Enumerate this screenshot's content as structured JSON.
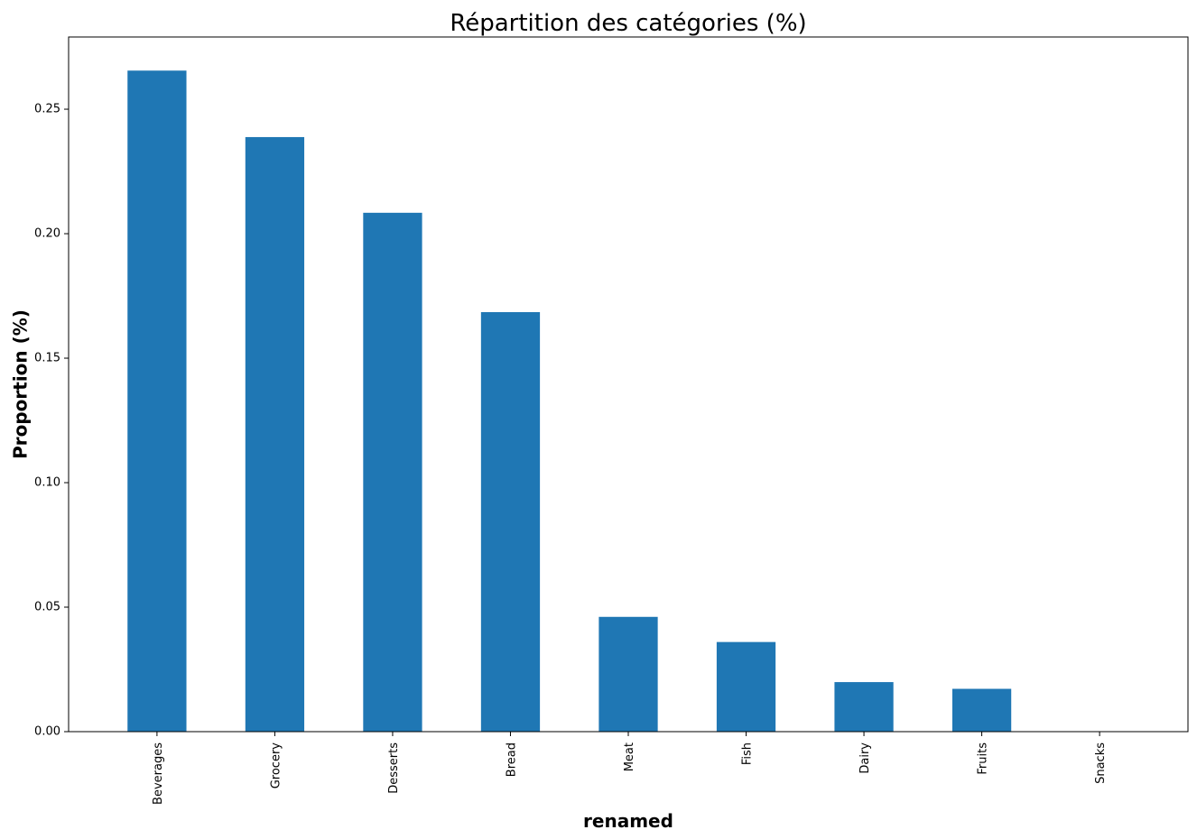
{
  "chart_data": {
    "type": "bar",
    "title": "Répartition des catégories (%)",
    "xlabel": "renamed",
    "ylabel": "Proportion (%)",
    "categories": [
      "Beverages",
      "Grocery",
      "Desserts",
      "Bread",
      "Meat",
      "Fish",
      "Dairy",
      "Fruits",
      "Snacks"
    ],
    "values": [
      0.2655,
      0.2388,
      0.2084,
      0.1685,
      0.0461,
      0.036,
      0.0199,
      0.0172,
      0.0
    ],
    "ylim": [
      0,
      0.279
    ],
    "yticks": [
      0.0,
      0.05,
      0.1,
      0.15,
      0.2,
      0.25
    ],
    "ytick_labels": [
      "0.00",
      "0.05",
      "0.10",
      "0.15",
      "0.20",
      "0.25"
    ],
    "bar_color": "#1f77b4",
    "grid": false,
    "legend": "none"
  }
}
